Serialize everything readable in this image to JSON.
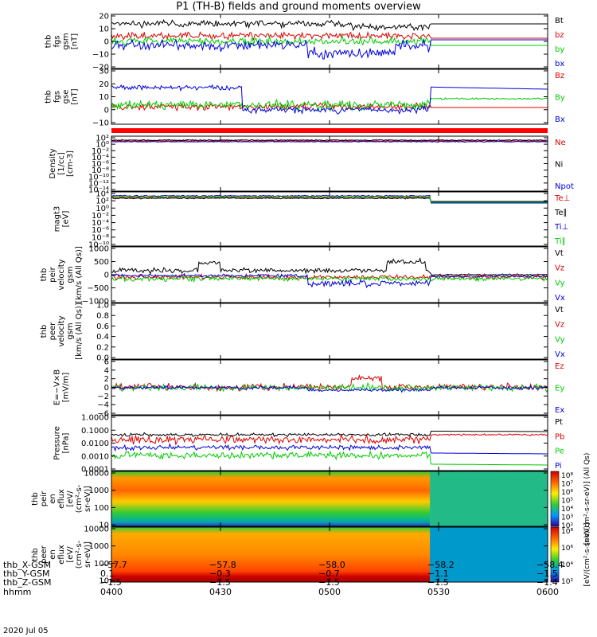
{
  "title": "P1 (TH-B) fields and ground moments overview",
  "colors": {
    "black": "#000000",
    "red": "#dd0000",
    "green": "#00cc00",
    "blue": "#0000dd"
  },
  "chart_data": {
    "type": "line",
    "time_axis": {
      "start": "0400",
      "end": "0600",
      "ticks": [
        "0400",
        "0430",
        "0500",
        "0530",
        "0600"
      ]
    },
    "panels": [
      {
        "id": "fgs-gsm",
        "ylabel": [
          "thb",
          "fgs",
          "gsm",
          "[nT]"
        ],
        "yticks": [
          "20",
          "10",
          "0",
          "−10",
          "−20"
        ],
        "ylim": [
          -20,
          20
        ],
        "legend": [
          "Bt",
          "bz",
          "by",
          "bx"
        ],
        "legend_colors": [
          "black",
          "red",
          "green",
          "blue"
        ]
      },
      {
        "id": "fgs-gse",
        "ylabel": [
          "thb",
          "fgs",
          "gse",
          "[nT]"
        ],
        "yticks": [
          "30",
          "20",
          "10",
          "0",
          "−10"
        ],
        "ylim": [
          -15,
          30
        ],
        "legend": [
          "Bz",
          "By",
          "Bx"
        ],
        "legend_colors": [
          "red",
          "green",
          "blue"
        ]
      },
      {
        "id": "density",
        "ylabel": [
          "Density",
          "[1/cc]",
          "[cm-3]"
        ],
        "yticks": [
          "10²",
          "10⁰",
          "10⁻²",
          "10⁻⁴",
          "10⁻⁶",
          "10⁻⁸",
          "10⁻¹⁰",
          "10⁻¹²",
          "10⁻¹⁴"
        ],
        "log": true,
        "legend": [
          "Ne",
          "Ni",
          "Npot"
        ],
        "legend_colors": [
          "red",
          "black",
          "blue"
        ]
      },
      {
        "id": "temperature",
        "ylabel": [
          "magt3",
          "[eV]"
        ],
        "yticks": [
          "10⁴",
          "10²",
          "10⁰",
          "10⁻²",
          "10⁻⁴",
          "10⁻⁶",
          "10⁻⁸",
          "10⁻¹⁰"
        ],
        "log": true,
        "legend": [
          "Te⊥",
          "Te∥",
          "Ti⊥",
          "Ti∥"
        ],
        "legend_colors": [
          "red",
          "black",
          "blue",
          "green"
        ]
      },
      {
        "id": "peir-velocity",
        "ylabel": [
          "thb",
          "peir",
          "velocity",
          "gsm",
          "[km/s (All Qs)]"
        ],
        "yticks": [
          "1000",
          "500",
          "0",
          "−500",
          "−1000"
        ],
        "ylim": [
          -1000,
          1000
        ],
        "legend": [
          "Vt",
          "Vz",
          "Vy",
          "Vx"
        ],
        "legend_colors": [
          "black",
          "red",
          "green",
          "blue"
        ]
      },
      {
        "id": "peer-velocity",
        "ylabel": [
          "thb",
          "peer",
          "velocity",
          "gsm",
          "[km/s (All Qs)]"
        ],
        "yticks": [
          "1.0",
          "0.8",
          "0.6",
          "0.4",
          "0.2",
          "0.0"
        ],
        "ylim": [
          0,
          1
        ],
        "legend": [
          "Vt",
          "Vz",
          "Vy",
          "Vx"
        ],
        "legend_colors": [
          "black",
          "red",
          "green",
          "blue"
        ]
      },
      {
        "id": "e-field",
        "ylabel": [
          "E=−V×B",
          "[mV/m]"
        ],
        "yticks": [
          "6",
          "4",
          "2",
          "0",
          "−2",
          "−4",
          "−6"
        ],
        "ylim": [
          -6,
          6
        ],
        "legend": [
          "Ez",
          "Ey",
          "Ex"
        ],
        "legend_colors": [
          "red",
          "green",
          "blue"
        ]
      },
      {
        "id": "pressure",
        "ylabel": [
          "Pressure",
          "[nPa]"
        ],
        "yticks": [
          "1.0000",
          "0.1000",
          "0.0100",
          "0.0010",
          "0.0001"
        ],
        "log": true,
        "legend": [
          "Pt",
          "Pb",
          "Pe",
          "Pi"
        ],
        "legend_colors": [
          "black",
          "red",
          "green",
          "blue"
        ]
      },
      {
        "id": "peir-spectrogram",
        "ylabel": [
          "thb",
          "peir",
          "en",
          "eflux",
          "[eV/",
          "(cm²-s-",
          "sr-eV)]"
        ],
        "yticks": [
          "10000",
          "1000",
          "100",
          "10"
        ],
        "colorbar_ticks": [
          "10⁸",
          "10⁷",
          "10⁶",
          "10⁵",
          "10⁴",
          "10³",
          "10²"
        ],
        "colorbar_label": "[eV/(cm²-s-sr-eV)] (All Qs)"
      },
      {
        "id": "peer-spectrogram",
        "ylabel": [
          "thb",
          "peer",
          "en",
          "eflux",
          "[eV/",
          "(cm²-s-",
          "sr-eV)]"
        ],
        "yticks": [
          "10000",
          "1000",
          "100",
          "10"
        ],
        "colorbar_ticks": [
          "10⁸",
          "10⁶",
          "10⁴",
          "10²"
        ],
        "colorbar_label": "[eV/(cm²-s-sr-eV)]"
      }
    ]
  },
  "footer": {
    "rows": [
      {
        "label": "thb_X-GSM",
        "values": [
          "−57.7",
          "−57.8",
          "−58.0",
          "−58.2",
          "−58.4"
        ]
      },
      {
        "label": "thb_Y-GSM",
        "values": [
          "0.1",
          "−0.3",
          "−0.7",
          "−1.1",
          "−1.5"
        ]
      },
      {
        "label": "thb_Z-GSM",
        "values": [
          "−1.5",
          "−1.5",
          "−1.5",
          "−1.5",
          "−1.4"
        ]
      },
      {
        "label": "hhmm",
        "values": [
          "0400",
          "0430",
          "0500",
          "0530",
          "0600"
        ]
      }
    ],
    "date": "2020 Jul 05"
  }
}
